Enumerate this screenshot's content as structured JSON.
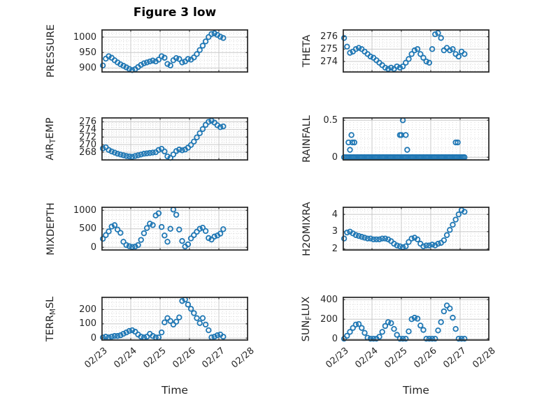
{
  "figure": {
    "title": "Figure 3 low",
    "xlabel": "Time",
    "marker_color": "#1f77b4",
    "major_grid_color": "#c9c9c9",
    "minor_grid_color": "#cfcfcf",
    "axis_color": "#2e2e2e",
    "text_color": "#262626",
    "background_color": "#ffffff"
  },
  "xaxis": {
    "tick_labels": [
      "02/23",
      "02/24",
      "02/25",
      "02/26",
      "02/27",
      "02/28"
    ],
    "lim_days": [
      0,
      5
    ],
    "days_origin": "02/23",
    "label": "Time"
  },
  "chart_data": [
    {
      "id": "pressure",
      "type": "scatter",
      "row": 0,
      "col": 0,
      "ylabel_parts": [
        {
          "t": "PRESSURE"
        }
      ],
      "yticks": [
        900,
        950,
        1000
      ],
      "ylim": [
        885,
        1025
      ],
      "x": [
        0.05,
        0.15,
        0.25,
        0.35,
        0.45,
        0.55,
        0.65,
        0.75,
        0.85,
        0.95,
        1.05,
        1.15,
        1.25,
        1.35,
        1.45,
        1.55,
        1.65,
        1.75,
        1.85,
        1.95,
        2.05,
        2.15,
        2.25,
        2.35,
        2.45,
        2.55,
        2.65,
        2.75,
        2.85,
        2.95,
        3.05,
        3.15,
        3.25,
        3.35,
        3.45,
        3.55,
        3.65,
        3.75,
        3.85,
        3.95,
        4.05,
        4.15
      ],
      "y": [
        908,
        930,
        938,
        933,
        925,
        918,
        912,
        907,
        902,
        897,
        893,
        896,
        903,
        910,
        915,
        918,
        921,
        924,
        921,
        927,
        938,
        933,
        913,
        908,
        925,
        932,
        929,
        918,
        921,
        929,
        927,
        934,
        945,
        958,
        972,
        986,
        1000,
        1010,
        1012,
        1007,
        1001,
        997
      ]
    },
    {
      "id": "theta",
      "type": "scatter",
      "row": 0,
      "col": 1,
      "ylabel_parts": [
        {
          "t": "THETA"
        }
      ],
      "yticks": [
        274,
        275,
        276
      ],
      "ylim": [
        273.1,
        276.6
      ],
      "x": [
        0.05,
        0.15,
        0.25,
        0.35,
        0.45,
        0.55,
        0.65,
        0.75,
        0.85,
        0.95,
        1.05,
        1.15,
        1.25,
        1.35,
        1.45,
        1.55,
        1.65,
        1.75,
        1.85,
        1.95,
        2.05,
        2.15,
        2.25,
        2.35,
        2.45,
        2.55,
        2.65,
        2.75,
        2.85,
        2.95,
        3.05,
        3.15,
        3.25,
        3.35,
        3.45,
        3.55,
        3.65,
        3.75,
        3.85,
        3.95,
        4.05,
        4.15
      ],
      "y": [
        275.9,
        275.2,
        274.7,
        274.8,
        275.0,
        275.1,
        275.0,
        274.8,
        274.6,
        274.4,
        274.3,
        274.1,
        273.9,
        273.7,
        273.5,
        273.4,
        273.5,
        273.4,
        273.6,
        273.5,
        273.6,
        273.9,
        274.2,
        274.6,
        274.9,
        275.0,
        274.6,
        274.3,
        274.0,
        273.9,
        275.0,
        276.2,
        276.3,
        275.9,
        274.9,
        275.1,
        274.9,
        275.0,
        274.6,
        274.4,
        274.8,
        274.6
      ]
    },
    {
      "id": "air_temp",
      "type": "scatter",
      "row": 1,
      "col": 0,
      "ylabel_parts": [
        {
          "t": "AIR"
        },
        {
          "t": "T",
          "sub": true
        },
        {
          "t": "EMP"
        }
      ],
      "yticks": [
        268,
        270,
        272,
        274,
        276
      ],
      "ylim": [
        265.8,
        277.2
      ],
      "x": [
        0.05,
        0.15,
        0.25,
        0.35,
        0.45,
        0.55,
        0.65,
        0.75,
        0.85,
        0.95,
        1.05,
        1.15,
        1.25,
        1.35,
        1.45,
        1.55,
        1.65,
        1.75,
        1.85,
        1.95,
        2.05,
        2.15,
        2.25,
        2.35,
        2.45,
        2.55,
        2.65,
        2.75,
        2.85,
        2.95,
        3.05,
        3.15,
        3.25,
        3.35,
        3.45,
        3.55,
        3.65,
        3.75,
        3.85,
        3.95,
        4.05,
        4.15
      ],
      "y": [
        269.0,
        269.3,
        268.6,
        268.2,
        267.9,
        267.6,
        267.4,
        267.2,
        267.0,
        266.9,
        266.8,
        267.0,
        267.2,
        267.4,
        267.6,
        267.7,
        267.8,
        267.9,
        268.0,
        268.6,
        268.9,
        268.2,
        266.9,
        266.5,
        267.4,
        268.3,
        268.7,
        268.5,
        268.7,
        269.2,
        269.9,
        270.8,
        271.9,
        273.0,
        274.1,
        275.2,
        276.0,
        276.3,
        275.8,
        275.1,
        274.6,
        274.8
      ]
    },
    {
      "id": "rainfall",
      "type": "scatter",
      "row": 1,
      "col": 1,
      "ylabel_parts": [
        {
          "t": "RAINFALL"
        }
      ],
      "yticks": [
        0,
        0.5
      ],
      "ylim": [
        -0.045,
        0.54
      ],
      "x": [
        0.05,
        0.1,
        0.15,
        0.2,
        0.25,
        0.3,
        0.35,
        0.4,
        0.45,
        0.5,
        0.55,
        0.6,
        0.65,
        0.7,
        0.75,
        0.8,
        0.85,
        0.9,
        0.95,
        1.0,
        1.05,
        1.1,
        1.15,
        1.2,
        1.25,
        1.3,
        1.35,
        1.4,
        1.45,
        1.5,
        1.55,
        1.6,
        1.65,
        1.7,
        1.75,
        1.8,
        1.85,
        1.9,
        1.95,
        2.0,
        2.05,
        2.1,
        2.15,
        2.2,
        2.25,
        2.3,
        2.35,
        2.4,
        2.45,
        2.5,
        2.55,
        2.6,
        2.65,
        2.7,
        2.75,
        2.8,
        2.85,
        2.9,
        2.95,
        3.0,
        3.05,
        3.1,
        3.15,
        3.2,
        3.25,
        3.3,
        3.35,
        3.4,
        3.45,
        3.5,
        3.55,
        3.6,
        3.65,
        3.7,
        3.75,
        3.8,
        3.85,
        3.9,
        3.95,
        4.0,
        4.05,
        4.1,
        4.15,
        0.2,
        0.25,
        0.3,
        0.33,
        0.4,
        1.95,
        2.0,
        2.05,
        2.15,
        2.2,
        3.85,
        3.92
      ],
      "y": [
        0,
        0,
        0,
        0,
        0,
        0,
        0,
        0,
        0,
        0,
        0,
        0,
        0,
        0,
        0,
        0,
        0,
        0,
        0,
        0,
        0,
        0,
        0,
        0,
        0,
        0,
        0,
        0,
        0,
        0,
        0,
        0,
        0,
        0,
        0,
        0,
        0,
        0,
        0,
        0,
        0,
        0,
        0,
        0,
        0,
        0,
        0,
        0,
        0,
        0,
        0,
        0,
        0,
        0,
        0,
        0,
        0,
        0,
        0,
        0,
        0,
        0,
        0,
        0,
        0,
        0,
        0,
        0,
        0,
        0,
        0,
        0,
        0,
        0,
        0,
        0,
        0,
        0,
        0,
        0,
        0,
        0,
        0,
        0.2,
        0.1,
        0.3,
        0.2,
        0.2,
        0.3,
        0.3,
        0.5,
        0.3,
        0.1,
        0.2,
        0.2
      ]
    },
    {
      "id": "mixdepth",
      "type": "scatter",
      "row": 2,
      "col": 0,
      "ylabel_parts": [
        {
          "t": "MIXDEPTH"
        }
      ],
      "yticks": [
        0,
        500,
        1000
      ],
      "ylim": [
        -90,
        1100
      ],
      "x": [
        0.05,
        0.15,
        0.25,
        0.35,
        0.45,
        0.55,
        0.65,
        0.75,
        0.85,
        0.95,
        1.05,
        1.15,
        1.25,
        1.35,
        1.45,
        1.55,
        1.65,
        1.75,
        1.85,
        1.95,
        2.05,
        2.15,
        2.25,
        2.35,
        2.45,
        2.55,
        2.65,
        2.75,
        2.85,
        2.95,
        3.05,
        3.15,
        3.25,
        3.35,
        3.45,
        3.55,
        3.65,
        3.75,
        3.85,
        3.95,
        4.05,
        4.15
      ],
      "y": [
        230,
        330,
        430,
        560,
        600,
        480,
        390,
        150,
        60,
        30,
        10,
        20,
        60,
        200,
        380,
        520,
        640,
        600,
        860,
        920,
        550,
        320,
        150,
        500,
        1020,
        880,
        480,
        170,
        20,
        80,
        240,
        330,
        420,
        500,
        530,
        440,
        250,
        210,
        290,
        320,
        370,
        490
      ]
    },
    {
      "id": "h2omixra",
      "type": "scatter",
      "row": 2,
      "col": 1,
      "ylabel_parts": [
        {
          "t": "H2OMIXRA"
        }
      ],
      "yticks": [
        2,
        3,
        4
      ],
      "ylim": [
        1.9,
        4.45
      ],
      "x": [
        0.05,
        0.15,
        0.25,
        0.35,
        0.45,
        0.55,
        0.65,
        0.75,
        0.85,
        0.95,
        1.05,
        1.15,
        1.25,
        1.35,
        1.45,
        1.55,
        1.65,
        1.75,
        1.85,
        1.95,
        2.05,
        2.15,
        2.25,
        2.35,
        2.45,
        2.55,
        2.65,
        2.75,
        2.85,
        2.95,
        3.05,
        3.15,
        3.25,
        3.35,
        3.45,
        3.55,
        3.65,
        3.75,
        3.85,
        3.95,
        4.05,
        4.15
      ],
      "y": [
        2.6,
        2.95,
        3.0,
        2.9,
        2.8,
        2.75,
        2.7,
        2.65,
        2.6,
        2.6,
        2.55,
        2.55,
        2.55,
        2.6,
        2.6,
        2.55,
        2.45,
        2.3,
        2.2,
        2.15,
        2.1,
        2.15,
        2.4,
        2.6,
        2.65,
        2.55,
        2.3,
        2.15,
        2.2,
        2.2,
        2.25,
        2.2,
        2.3,
        2.35,
        2.5,
        2.8,
        3.1,
        3.4,
        3.7,
        4.0,
        4.25,
        4.15
      ]
    },
    {
      "id": "terr_msl",
      "type": "scatter",
      "row": 3,
      "col": 0,
      "ylabel_parts": [
        {
          "t": "TERR"
        },
        {
          "t": "M",
          "sub": true
        },
        {
          "t": "SL"
        }
      ],
      "yticks": [
        0,
        100,
        200
      ],
      "ylim": [
        -18,
        290
      ],
      "x": [
        0.05,
        0.15,
        0.25,
        0.35,
        0.45,
        0.55,
        0.65,
        0.75,
        0.85,
        0.95,
        1.05,
        1.15,
        1.25,
        1.35,
        1.45,
        1.55,
        1.65,
        1.75,
        1.85,
        1.95,
        2.05,
        2.15,
        2.25,
        2.35,
        2.45,
        2.55,
        2.65,
        2.75,
        2.85,
        2.95,
        3.05,
        3.15,
        3.25,
        3.35,
        3.45,
        3.55,
        3.65,
        3.75,
        3.85,
        3.95,
        4.05,
        4.15
      ],
      "y": [
        5,
        10,
        5,
        10,
        15,
        15,
        20,
        30,
        40,
        50,
        55,
        45,
        25,
        10,
        5,
        10,
        30,
        15,
        5,
        5,
        40,
        110,
        140,
        120,
        95,
        115,
        145,
        260,
        270,
        235,
        205,
        175,
        140,
        105,
        140,
        95,
        55,
        5,
        10,
        20,
        25,
        10
      ]
    },
    {
      "id": "sun_flux",
      "type": "scatter",
      "row": 3,
      "col": 1,
      "ylabel_parts": [
        {
          "t": "SUN"
        },
        {
          "t": "F",
          "sub": true
        },
        {
          "t": "LUX"
        }
      ],
      "yticks": [
        0,
        200,
        400
      ],
      "ylim": [
        -20,
        430
      ],
      "x": [
        0.05,
        0.15,
        0.25,
        0.35,
        0.45,
        0.55,
        0.65,
        0.75,
        0.85,
        0.95,
        1.05,
        1.15,
        1.25,
        1.35,
        1.45,
        1.55,
        1.65,
        1.75,
        1.85,
        1.95,
        2.05,
        2.15,
        2.25,
        2.35,
        2.45,
        2.55,
        2.65,
        2.75,
        2.85,
        2.95,
        3.05,
        3.15,
        3.25,
        3.35,
        3.45,
        3.55,
        3.65,
        3.75,
        3.85,
        3.95,
        4.05,
        4.15
      ],
      "y": [
        0,
        30,
        70,
        110,
        145,
        150,
        110,
        60,
        10,
        0,
        0,
        0,
        20,
        70,
        130,
        170,
        160,
        100,
        40,
        0,
        0,
        0,
        75,
        200,
        215,
        205,
        135,
        90,
        0,
        0,
        0,
        0,
        85,
        170,
        280,
        340,
        310,
        215,
        100,
        0,
        0,
        0
      ]
    }
  ]
}
